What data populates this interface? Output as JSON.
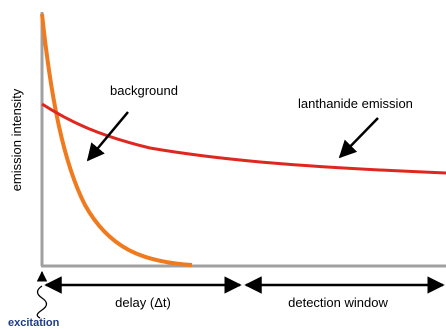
{
  "diagram": {
    "y_axis_label": "emission intensity",
    "curves": [
      {
        "id": "background",
        "label": "background",
        "color": "#f07a1e"
      },
      {
        "id": "lanthanide",
        "label": "lanthanide emission",
        "color": "#e0271f"
      }
    ],
    "timeline": {
      "delay_label": "delay (Δt)",
      "window_label": "detection window",
      "excitation_label": "excitation",
      "excitation_color": "#1f3c88"
    },
    "axis_color": "#a0a0a0",
    "arrow_color": "#000000"
  }
}
